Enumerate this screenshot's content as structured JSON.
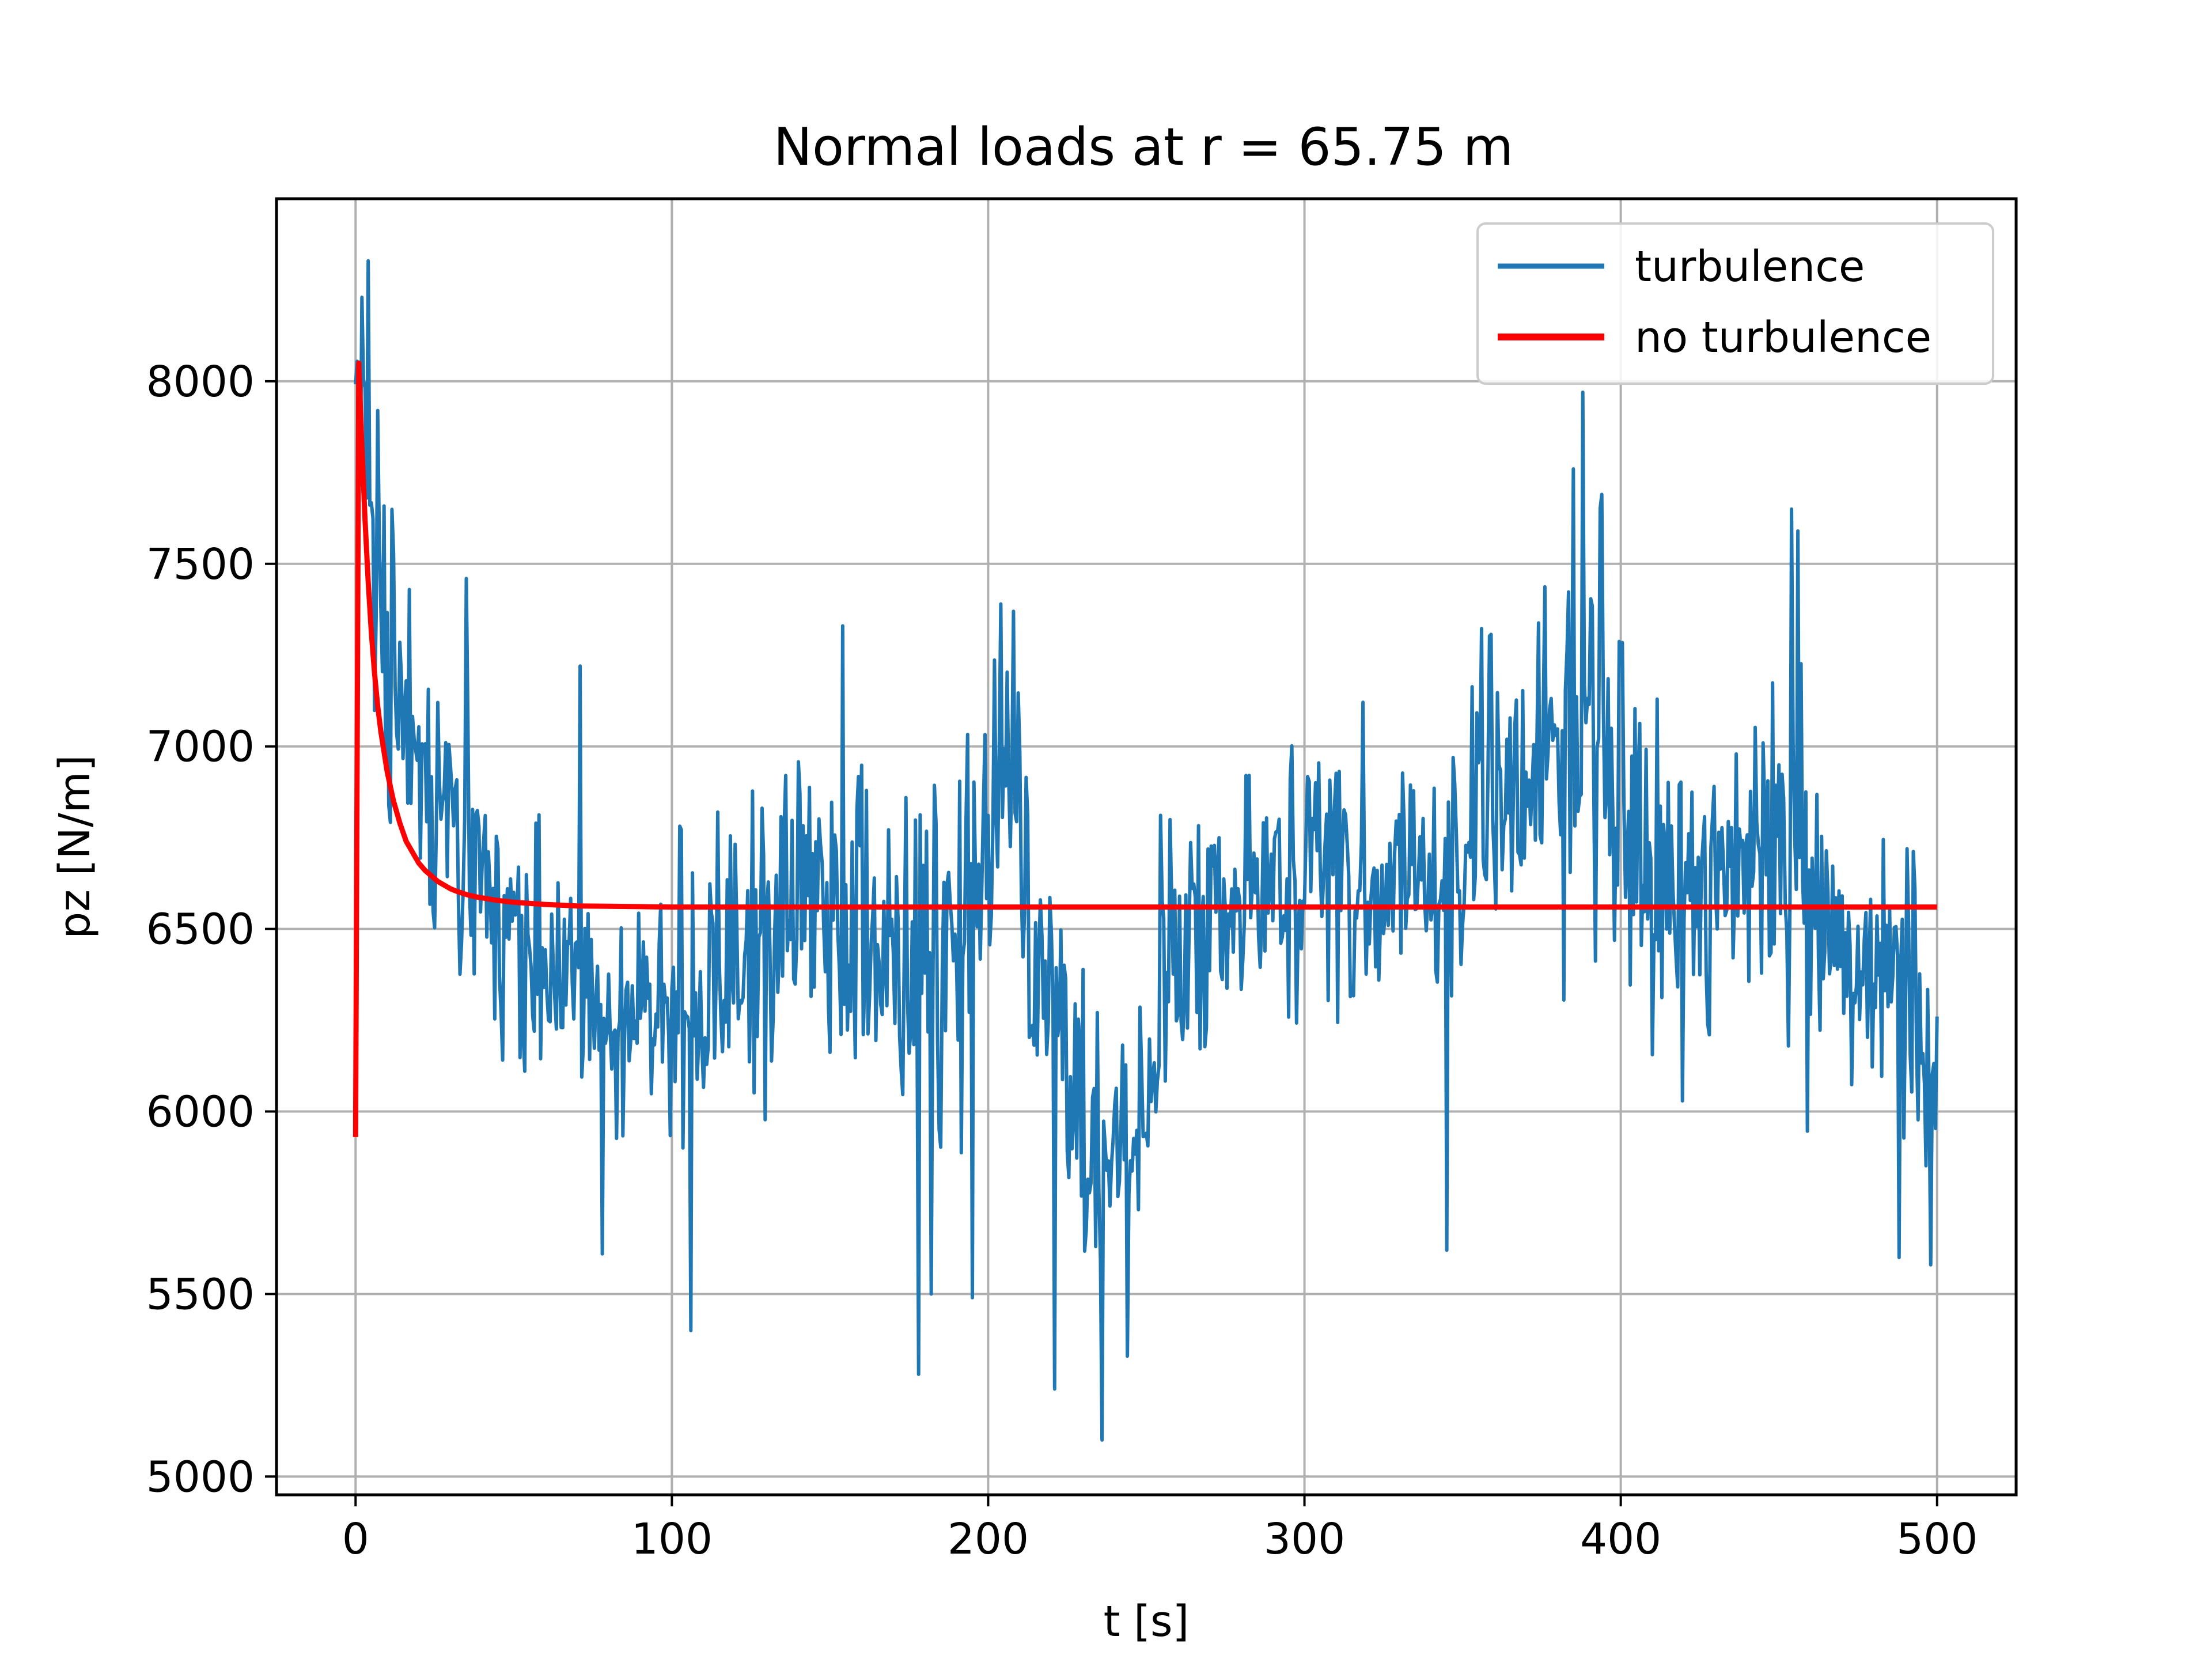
{
  "colors": {
    "turbulence": "#1f77b4",
    "no_turbulence": "#ff0000",
    "grid": "#b0b0b0",
    "axes": "#000000",
    "background": "#ffffff"
  },
  "chart_data": {
    "type": "line",
    "title": "Normal loads at r = 65.75 m",
    "xlabel": "t [s]",
    "ylabel": "pz [N/m]",
    "xlim": [
      -25,
      525
    ],
    "ylim": [
      4950,
      8500
    ],
    "grid": true,
    "legend_position": "top-right",
    "x_ticks": [
      0,
      100,
      200,
      300,
      400,
      500
    ],
    "x_tick_labels": [
      "0",
      "100",
      "200",
      "300",
      "400",
      "500"
    ],
    "y_ticks": [
      5000,
      5500,
      6000,
      6500,
      7000,
      7500,
      8000
    ],
    "y_tick_labels": [
      "5000",
      "5500",
      "6000",
      "6500",
      "7000",
      "7500",
      "8000"
    ],
    "series": [
      {
        "name": "turbulence",
        "style": "noisy",
        "x": [
          0,
          5,
          10,
          20,
          30,
          40,
          50,
          60,
          70,
          80,
          90,
          100,
          110,
          120,
          130,
          140,
          150,
          160,
          170,
          180,
          190,
          200,
          205,
          210,
          220,
          230,
          235,
          240,
          250,
          260,
          270,
          280,
          290,
          300,
          310,
          320,
          330,
          340,
          350,
          360,
          370,
          380,
          388,
          395,
          400,
          410,
          420,
          430,
          440,
          450,
          460,
          470,
          480,
          490,
          500
        ],
        "y": [
          7900,
          7600,
          7200,
          6900,
          6700,
          6650,
          6450,
          6400,
          6350,
          6350,
          6300,
          6250,
          6350,
          6450,
          6500,
          6550,
          6650,
          6500,
          6400,
          6300,
          6450,
          6750,
          6800,
          6600,
          6250,
          5950,
          5900,
          5950,
          6200,
          6400,
          6500,
          6600,
          6600,
          6650,
          6650,
          6600,
          6600,
          6650,
          6750,
          6850,
          6950,
          7050,
          7100,
          7000,
          6800,
          6650,
          6600,
          6650,
          6700,
          6800,
          6550,
          6450,
          6400,
          6350,
          6100
        ],
        "amplitude": [
          200,
          300,
          280,
          250,
          230,
          220,
          200,
          200,
          200,
          200,
          220,
          220,
          230,
          230,
          240,
          250,
          260,
          250,
          260,
          280,
          280,
          300,
          320,
          300,
          260,
          260,
          270,
          250,
          230,
          220,
          220,
          220,
          220,
          230,
          230,
          230,
          220,
          220,
          230,
          260,
          280,
          300,
          320,
          300,
          260,
          250,
          250,
          260,
          280,
          300,
          280,
          250,
          240,
          240,
          280
        ]
      },
      {
        "name": "no turbulence",
        "style": "decay",
        "x": [
          0,
          1,
          2,
          3,
          4,
          5,
          6,
          7,
          8,
          10,
          12,
          14,
          16,
          18,
          20,
          22,
          24,
          26,
          28,
          30,
          32,
          34,
          36,
          38,
          40,
          42,
          44,
          46,
          48,
          50,
          55,
          60,
          65,
          70,
          80,
          90,
          100,
          150,
          200,
          300,
          400,
          500
        ],
        "y": [
          5930,
          8050,
          7820,
          7620,
          7450,
          7310,
          7200,
          7110,
          7040,
          6930,
          6850,
          6790,
          6740,
          6710,
          6680,
          6660,
          6645,
          6630,
          6620,
          6610,
          6603,
          6597,
          6592,
          6588,
          6585,
          6582,
          6579,
          6577,
          6575,
          6573,
          6570,
          6567,
          6565,
          6563,
          6562,
          6561,
          6560,
          6560,
          6560,
          6560,
          6560,
          6560
        ]
      }
    ],
    "peaks": [
      {
        "x": 4,
        "y": 8330
      },
      {
        "x": 2,
        "y": 8230
      },
      {
        "x": 7,
        "y": 7920
      },
      {
        "x": 12,
        "y": 7530
      },
      {
        "x": 35,
        "y": 7460
      },
      {
        "x": 71,
        "y": 7220
      },
      {
        "x": 154,
        "y": 7330
      },
      {
        "x": 204,
        "y": 7390
      },
      {
        "x": 208,
        "y": 7370
      },
      {
        "x": 388,
        "y": 7970
      },
      {
        "x": 385,
        "y": 7760
      },
      {
        "x": 394,
        "y": 7690
      },
      {
        "x": 454,
        "y": 7650
      },
      {
        "x": 456,
        "y": 7590
      },
      {
        "x": 106,
        "y": 5400
      },
      {
        "x": 178,
        "y": 5280
      },
      {
        "x": 182,
        "y": 5500
      },
      {
        "x": 221,
        "y": 5240
      },
      {
        "x": 236,
        "y": 5100
      },
      {
        "x": 244,
        "y": 5330
      },
      {
        "x": 195,
        "y": 5490
      },
      {
        "x": 78,
        "y": 5610
      },
      {
        "x": 345,
        "y": 5620
      },
      {
        "x": 488,
        "y": 5600
      },
      {
        "x": 498,
        "y": 5580
      },
      {
        "x": 500,
        "y": 6260
      }
    ]
  }
}
